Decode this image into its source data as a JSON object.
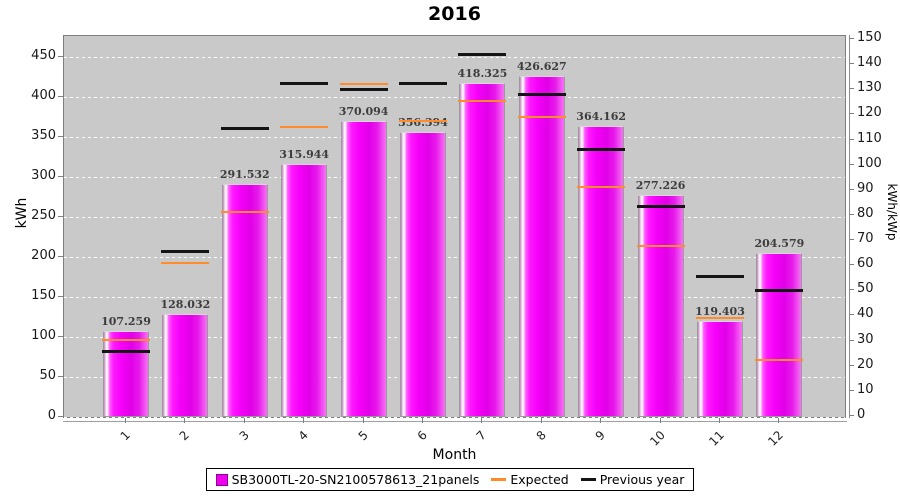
{
  "chart_data": {
    "type": "bar",
    "title": "2016",
    "xlabel": "Month",
    "ylabel_left": "kWh",
    "ylabel_right": "kWh/kWp",
    "categories": [
      "1",
      "2",
      "3",
      "4",
      "5",
      "6",
      "7",
      "8",
      "9",
      "10",
      "11",
      "12"
    ],
    "bar_series": {
      "name": "SB3000TL-20-SN2100578613_21panels",
      "color": "#f000f0",
      "values": [
        107.259,
        128.032,
        291.532,
        315.944,
        370.094,
        356.394,
        418.325,
        426.627,
        364.162,
        277.226,
        119.403,
        204.579
      ],
      "labels": [
        "107.259",
        "128.032",
        "291.532",
        "315.944",
        "370.094",
        "356.394",
        "418.325",
        "426.627",
        "364.162",
        "277.226",
        "119.403",
        "204.579"
      ]
    },
    "expected_series": {
      "name": "Expected",
      "color": "#ff8c28",
      "values": [
        96,
        192,
        256,
        363,
        417,
        370,
        395,
        375,
        288,
        214,
        123,
        71
      ]
    },
    "previous_series": {
      "name": "Previous year",
      "color": "#141414",
      "values": [
        82,
        207,
        361,
        417,
        410,
        417,
        454,
        404,
        335,
        263,
        175,
        158
      ]
    },
    "axis_left": {
      "label": "kWh",
      "min": 0,
      "max": 476,
      "ticks": [
        0,
        50,
        100,
        150,
        200,
        250,
        300,
        350,
        400,
        450
      ]
    },
    "axis_right": {
      "label": "kWh/kWp",
      "min": 0,
      "max": 151,
      "ticks": [
        0,
        10,
        20,
        30,
        40,
        50,
        60,
        70,
        80,
        90,
        100,
        110,
        120,
        130,
        140,
        150
      ]
    },
    "grid": "horizontal white dashed, legend bottom-center, plot background gray"
  },
  "colors": {
    "plot_background": "#c9c9c9",
    "bar": "#f000f0",
    "expected": "#ff8c28",
    "previous_year": "#141414",
    "gridline": "#ffffff"
  }
}
